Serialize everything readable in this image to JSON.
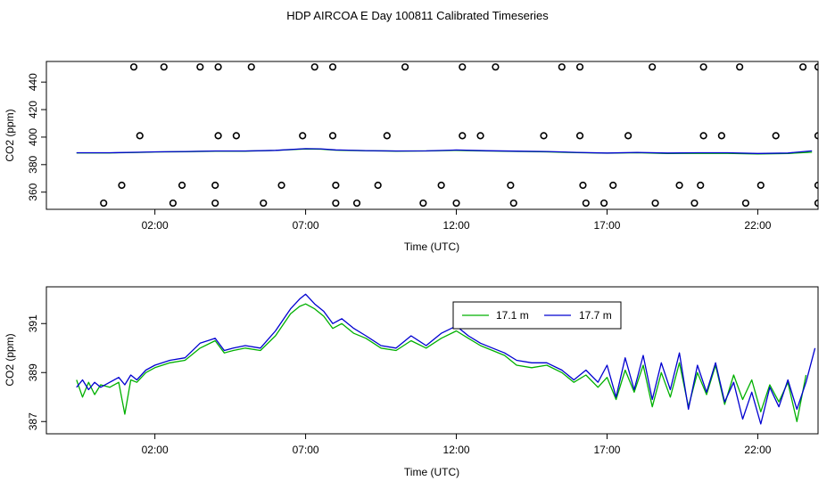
{
  "figure": {
    "title": "HDP AIRCOA E  Day 100811  Calibrated Timeseries"
  },
  "chart_data": [
    {
      "type": "scatter+line",
      "xlabel": "Time (UTC)",
      "ylabel": "CO2 (ppm)",
      "xlim": [
        -1.6,
        24.0
      ],
      "ylim": [
        347.5,
        455
      ],
      "xticks": [
        2,
        7,
        12,
        17,
        22
      ],
      "xtick_labels": [
        "02:00",
        "07:00",
        "12:00",
        "17:00",
        "22:00"
      ],
      "yticks": [
        360,
        380,
        400,
        420,
        440
      ],
      "yticks_labels": [
        "360",
        "380",
        "400",
        "420",
        "440"
      ],
      "grid": false,
      "calibration_points": {
        "x": [
          1.3,
          2.3,
          3.5,
          4.1,
          5.2,
          7.3,
          7.9,
          10.3,
          12.2,
          13.3,
          15.5,
          16.1,
          18.5,
          20.2,
          21.4,
          23.5,
          24.0,
          1.5,
          4.1,
          4.7,
          6.9,
          7.9,
          9.7,
          12.2,
          12.8,
          14.9,
          16.1,
          17.7,
          20.2,
          20.8,
          22.6,
          24.0,
          0.9,
          2.9,
          4.0,
          6.2,
          8.0,
          9.4,
          11.5,
          13.8,
          16.2,
          17.2,
          19.4,
          20.1,
          22.1,
          24.0,
          0.3,
          2.6,
          4.0,
          5.6,
          8.0,
          8.7,
          10.9,
          12.0,
          13.9,
          16.3,
          16.9,
          18.6,
          19.9,
          21.6,
          24.0
        ],
        "y": [
          451,
          451,
          451,
          451,
          451,
          451,
          451,
          451,
          451,
          451,
          451,
          451,
          451,
          451,
          451,
          451,
          451,
          401,
          401,
          401,
          401,
          401,
          401,
          401,
          401,
          401,
          401,
          401,
          401,
          401,
          401,
          401,
          365,
          365,
          365,
          365,
          365,
          365,
          365,
          365,
          365,
          365,
          365,
          365,
          365,
          365,
          352,
          352,
          352,
          352,
          352,
          352,
          352,
          352,
          352,
          352,
          352,
          352,
          352,
          352,
          352
        ]
      },
      "series": [
        {
          "color": "#00b000",
          "x": [
            -0.6,
            0.5,
            1.5,
            2.0,
            3.0,
            4.0,
            5.0,
            6.0,
            7.0,
            7.5,
            8.0,
            9.0,
            10.0,
            11.0,
            12.0,
            13.0,
            14.0,
            15.0,
            16.0,
            17.0,
            18.0,
            19.0,
            20.0,
            21.0,
            22.0,
            23.0,
            23.8
          ],
          "y": [
            388.5,
            388.5,
            388.9,
            389.2,
            389.4,
            389.8,
            389.8,
            390.3,
            391.4,
            391.2,
            390.5,
            390.1,
            389.8,
            389.9,
            390.4,
            389.9,
            389.6,
            389.3,
            388.7,
            388.3,
            388.6,
            388.1,
            388.2,
            388.2,
            387.8,
            388.1,
            389.0
          ]
        },
        {
          "color": "#0000d0",
          "x": [
            -0.6,
            0.5,
            1.5,
            2.0,
            3.0,
            4.0,
            5.0,
            6.0,
            7.0,
            7.5,
            8.0,
            9.0,
            10.0,
            11.0,
            12.0,
            13.0,
            14.0,
            15.0,
            16.0,
            17.0,
            18.0,
            19.0,
            20.0,
            21.0,
            22.0,
            23.0,
            23.8
          ],
          "y": [
            388.6,
            388.6,
            389.0,
            389.3,
            389.5,
            389.9,
            389.9,
            390.4,
            391.6,
            391.5,
            390.7,
            390.2,
            389.9,
            390.0,
            390.6,
            390.1,
            389.8,
            389.5,
            388.9,
            388.4,
            388.9,
            388.4,
            388.6,
            388.6,
            388.1,
            388.4,
            390.0
          ]
        }
      ]
    },
    {
      "type": "line",
      "xlabel": "Time (UTC)",
      "ylabel": "CO2 (ppm)",
      "xlim": [
        -1.6,
        24.0
      ],
      "ylim": [
        386.5,
        392.5
      ],
      "xticks": [
        2,
        7,
        12,
        17,
        22
      ],
      "xtick_labels": [
        "02:00",
        "07:00",
        "12:00",
        "17:00",
        "22:00"
      ],
      "yticks": [
        387,
        389,
        391
      ],
      "yticks_labels": [
        "387",
        "389",
        "391"
      ],
      "grid": false,
      "legend": {
        "position": "top-center",
        "entries": [
          {
            "name": "17.1 m",
            "color": "#00b000"
          },
          {
            "name": "17.7 m",
            "color": "#0000d0"
          }
        ]
      },
      "series": [
        {
          "name": "17.1 m",
          "color": "#00b000",
          "x": [
            -0.6,
            -0.4,
            -0.2,
            0.0,
            0.2,
            0.5,
            0.8,
            1.0,
            1.2,
            1.4,
            1.7,
            2.0,
            2.5,
            3.0,
            3.5,
            4.0,
            4.3,
            4.6,
            5.0,
            5.5,
            6.0,
            6.5,
            6.8,
            7.0,
            7.3,
            7.6,
            7.9,
            8.2,
            8.6,
            9.0,
            9.5,
            10.0,
            10.5,
            11.0,
            11.5,
            12.0,
            12.4,
            12.8,
            13.2,
            13.6,
            14.0,
            14.5,
            15.0,
            15.5,
            15.9,
            16.3,
            16.7,
            17.0,
            17.3,
            17.6,
            17.9,
            18.2,
            18.5,
            18.8,
            19.1,
            19.4,
            19.7,
            20.0,
            20.3,
            20.6,
            20.9,
            21.2,
            21.5,
            21.8,
            22.1,
            22.4,
            22.7,
            23.0,
            23.3,
            23.6
          ],
          "y": [
            388.7,
            388.0,
            388.6,
            388.1,
            388.5,
            388.4,
            388.6,
            387.3,
            388.7,
            388.6,
            389.0,
            389.2,
            389.4,
            389.5,
            390.0,
            390.3,
            389.8,
            389.9,
            390.0,
            389.9,
            390.5,
            391.4,
            391.7,
            391.8,
            391.6,
            391.3,
            390.8,
            391.0,
            390.6,
            390.4,
            390.0,
            389.9,
            390.3,
            390.0,
            390.4,
            390.7,
            390.4,
            390.1,
            389.9,
            389.7,
            389.3,
            389.2,
            389.3,
            389.0,
            388.6,
            388.9,
            388.4,
            388.8,
            387.9,
            389.1,
            388.2,
            389.3,
            387.6,
            389.0,
            388.0,
            389.4,
            387.6,
            389.0,
            388.1,
            389.3,
            387.7,
            388.9,
            387.9,
            388.7,
            387.4,
            388.5,
            387.8,
            388.6,
            387.0,
            388.9
          ]
        },
        {
          "name": "17.7 m",
          "color": "#0000d0",
          "x": [
            -0.6,
            -0.4,
            -0.2,
            0.0,
            0.2,
            0.5,
            0.8,
            1.0,
            1.2,
            1.4,
            1.7,
            2.0,
            2.5,
            3.0,
            3.5,
            4.0,
            4.3,
            4.6,
            5.0,
            5.5,
            6.0,
            6.5,
            6.8,
            7.0,
            7.3,
            7.6,
            7.9,
            8.2,
            8.6,
            9.0,
            9.5,
            10.0,
            10.5,
            11.0,
            11.5,
            12.0,
            12.4,
            12.8,
            13.2,
            13.6,
            14.0,
            14.5,
            15.0,
            15.5,
            15.9,
            16.3,
            16.7,
            17.0,
            17.3,
            17.6,
            17.9,
            18.2,
            18.5,
            18.8,
            19.1,
            19.4,
            19.7,
            20.0,
            20.3,
            20.6,
            20.9,
            21.2,
            21.5,
            21.8,
            22.1,
            22.4,
            22.7,
            23.0,
            23.3,
            23.6,
            23.9
          ],
          "y": [
            388.4,
            388.7,
            388.3,
            388.6,
            388.4,
            388.6,
            388.8,
            388.5,
            388.9,
            388.7,
            389.1,
            389.3,
            389.5,
            389.6,
            390.2,
            390.4,
            389.9,
            390.0,
            390.1,
            390.0,
            390.7,
            391.6,
            392.0,
            392.2,
            391.8,
            391.5,
            391.0,
            391.2,
            390.8,
            390.5,
            390.1,
            390.0,
            390.5,
            390.1,
            390.6,
            390.9,
            390.5,
            390.2,
            390.0,
            389.8,
            389.5,
            389.4,
            389.4,
            389.1,
            388.7,
            389.1,
            388.6,
            389.3,
            388.0,
            389.6,
            388.3,
            389.7,
            387.9,
            389.4,
            388.3,
            389.8,
            387.5,
            389.3,
            388.2,
            389.4,
            387.8,
            388.6,
            387.1,
            388.2,
            386.9,
            388.4,
            387.6,
            388.7,
            387.5,
            388.6,
            390.0
          ]
        }
      ]
    }
  ]
}
